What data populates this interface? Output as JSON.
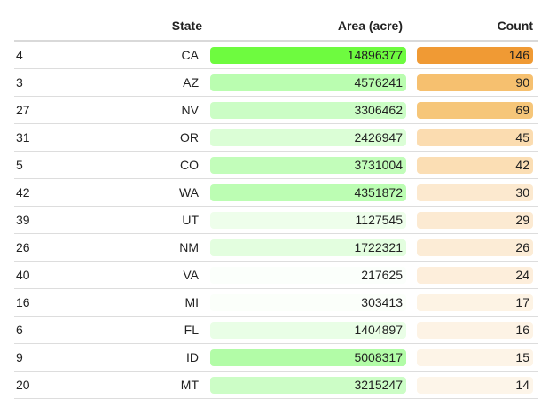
{
  "table": {
    "columns": [
      {
        "key": "index",
        "label": ""
      },
      {
        "key": "state",
        "label": "State"
      },
      {
        "key": "area",
        "label": "Area (acre)"
      },
      {
        "key": "count",
        "label": "Count"
      }
    ],
    "rows": [
      {
        "index": "4",
        "state": "CA",
        "area": "14896377",
        "count": "146",
        "area_color": "#6efb3f",
        "count_color": "#f09a34"
      },
      {
        "index": "3",
        "state": "AZ",
        "area": "4576241",
        "count": "90",
        "area_color": "#bafdb0",
        "count_color": "#f6c06f"
      },
      {
        "index": "27",
        "state": "NV",
        "area": "3306462",
        "count": "69",
        "area_color": "#cbfdc5",
        "count_color": "#f6c679"
      },
      {
        "index": "31",
        "state": "OR",
        "area": "2426947",
        "count": "45",
        "area_color": "#dbfed6",
        "count_color": "#fbdcb0"
      },
      {
        "index": "5",
        "state": "CO",
        "area": "3731004",
        "count": "42",
        "area_color": "#c2fdba",
        "count_color": "#fbdeb4"
      },
      {
        "index": "42",
        "state": "WA",
        "area": "4351872",
        "count": "30",
        "area_color": "#bcfdb3",
        "count_color": "#fce9cf"
      },
      {
        "index": "39",
        "state": "UT",
        "area": "1127545",
        "count": "29",
        "area_color": "#eefeeb",
        "count_color": "#fcead2"
      },
      {
        "index": "26",
        "state": "NM",
        "area": "1722321",
        "count": "26",
        "area_color": "#e3fedf",
        "count_color": "#fcecd6"
      },
      {
        "index": "40",
        "state": "VA",
        "area": "217625",
        "count": "24",
        "area_color": "#fbfffb",
        "count_color": "#fdeedb"
      },
      {
        "index": "16",
        "state": "MI",
        "area": "303413",
        "count": "17",
        "area_color": "#fbfffa",
        "count_color": "#fdf3e4"
      },
      {
        "index": "6",
        "state": "FL",
        "area": "1404897",
        "count": "16",
        "area_color": "#e9feE6",
        "count_color": "#fdf3e5"
      },
      {
        "index": "9",
        "state": "ID",
        "area": "5008317",
        "count": "15",
        "area_color": "#b2fca7",
        "count_color": "#fdf4e7"
      },
      {
        "index": "20",
        "state": "MT",
        "area": "3215247",
        "count": "14",
        "area_color": "#ccfdc6",
        "count_color": "#fdf5e9"
      }
    ]
  }
}
